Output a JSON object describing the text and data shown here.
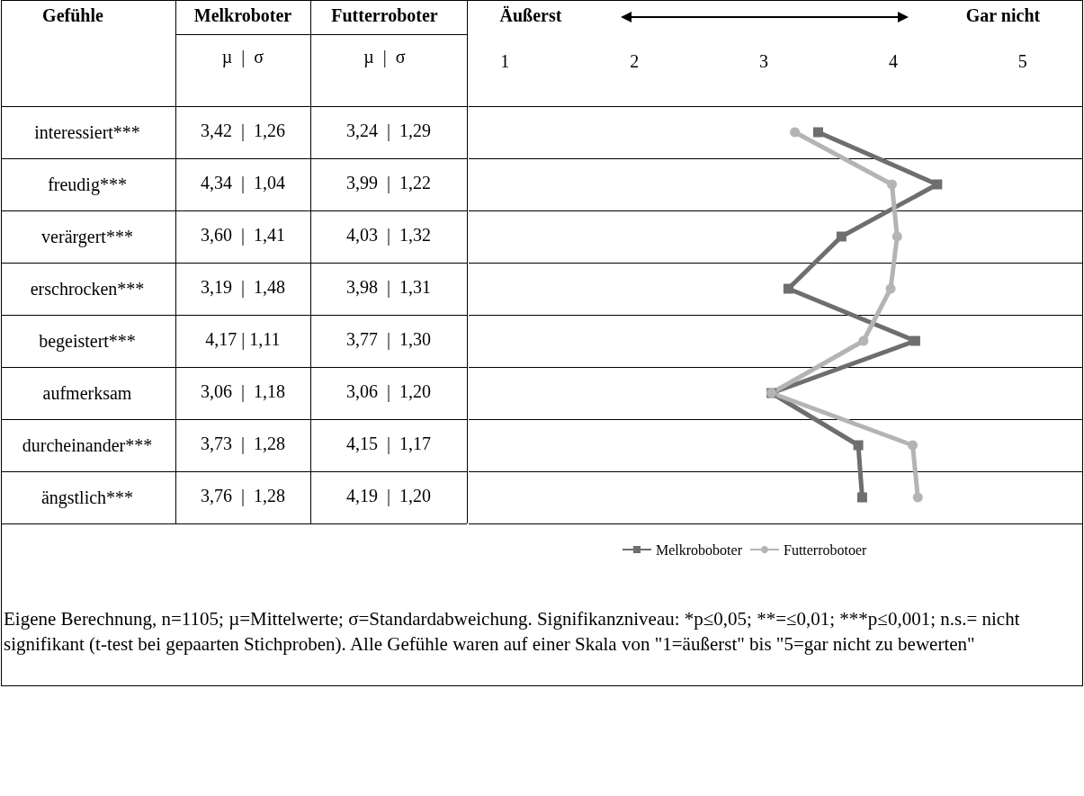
{
  "chart_data": {
    "type": "line",
    "orientation": "horizontal",
    "categories": [
      "interessiert***",
      "freudig***",
      "verärgert***",
      "erschrocken***",
      "begeistert***",
      "aufmerksam",
      "durcheinander***",
      "ängstlich***"
    ],
    "series": [
      {
        "name": "Melkroboboter",
        "color": "#6e6e6e",
        "marker": "square",
        "values": [
          3.42,
          4.34,
          3.6,
          3.19,
          4.17,
          3.06,
          3.73,
          3.76
        ],
        "value_labels": [
          "3,42  |  1,26",
          "4,34  |  1,04",
          "3,60  |  1,41",
          "3,19  |  1,48",
          "4,17 | 1,11",
          "3,06  |  1,18",
          "3,73  |  1,28",
          "3,76  |  1,28"
        ]
      },
      {
        "name": "Futterrobotoer",
        "color": "#b4b4b4",
        "marker": "circle",
        "values": [
          3.24,
          3.99,
          4.03,
          3.98,
          3.77,
          3.06,
          4.15,
          4.19
        ],
        "value_labels": [
          "3,24  |  1,29",
          "3,99  |  1,22",
          "4,03  |  1,32",
          "3,98  |  1,31",
          "3,77  |  1,30",
          "3,06  |  1,20",
          "4,15  |  1,17",
          "4,19  |  1,20"
        ]
      }
    ],
    "x2lim": [
      0.72,
      5.46
    ],
    "x2ticks": [
      1,
      2,
      3,
      4,
      5
    ],
    "grid": "y",
    "legend": "bottom",
    "line_style": "solid",
    "annotations": [
      "Gefühle",
      "Melkroboter",
      "Futterroboter",
      "µ  |  σ",
      "µ  |  σ",
      "Äußerst",
      "Gar nicht",
      "Eigene Berechnung, n=1105; µ=Mittelwerte; σ=Standardabweichung. Signifikanzniveau: *p≤0,05; **=≤0,01; ***p≤0,001; n.s.= nicht signifikant (t-test bei gepaarten Stichproben). Alle Gefühle waren auf einer Skala von \"1=äußerst\" bis \"5=gar nicht zu bewerten\""
    ]
  }
}
